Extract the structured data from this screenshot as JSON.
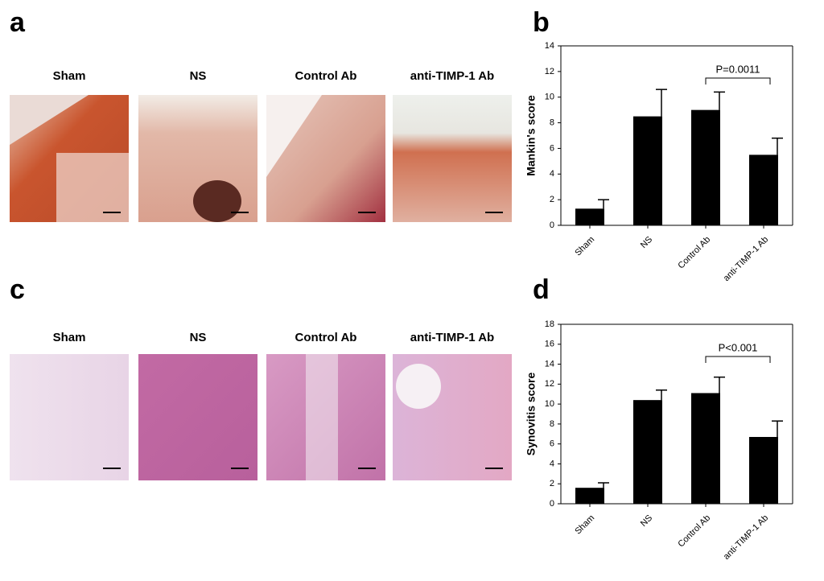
{
  "image_panels": [
    {
      "letter": "a",
      "labels": [
        "Sham",
        "NS",
        "Control Ab",
        "anti-TIMP-1 Ab"
      ]
    },
    {
      "letter": "c",
      "labels": [
        "Sham",
        "NS",
        "Control Ab",
        "anti-TIMP-1 Ab"
      ]
    }
  ],
  "chart_data": [
    {
      "type": "bar",
      "panel": "b",
      "y_label": "Mankin's score",
      "categories": [
        "Sham",
        "NS",
        "Control Ab",
        "anti-TIMP-1 Ab"
      ],
      "values": [
        1.3,
        8.5,
        9.0,
        5.5
      ],
      "errors": [
        0.7,
        2.1,
        1.4,
        1.3
      ],
      "color": "#000000",
      "ylim": [
        0,
        14
      ],
      "yticks": [
        0,
        2,
        4,
        6,
        8,
        10,
        12,
        14
      ],
      "annotation": "P=0.0011"
    },
    {
      "type": "bar",
      "panel": "d",
      "y_label": "Synovitis score",
      "categories": [
        "Sham",
        "NS",
        "Control Ab",
        "anti-TIMP-1 Ab"
      ],
      "values": [
        1.6,
        10.4,
        11.1,
        6.7
      ],
      "errors": [
        0.5,
        1.0,
        1.6,
        1.6
      ],
      "color": "#000000",
      "ylim": [
        0,
        18
      ],
      "yticks": [
        0,
        2,
        4,
        6,
        8,
        10,
        12,
        14,
        16,
        18
      ],
      "annotation": "P<0.001"
    }
  ]
}
